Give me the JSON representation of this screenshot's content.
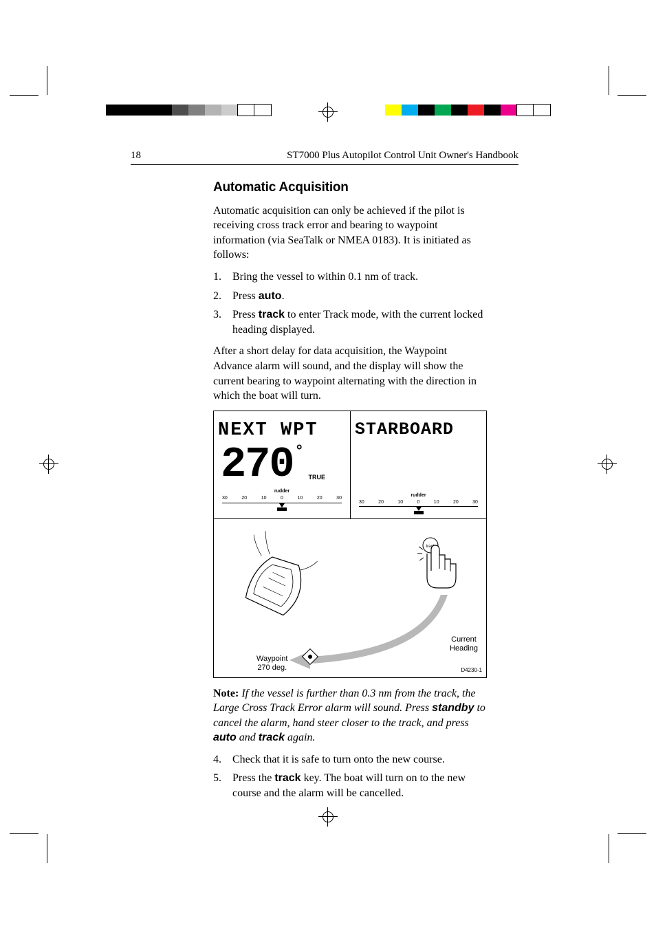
{
  "colorbars": {
    "left": [
      "#000000",
      "#000000",
      "#000000",
      "#000000",
      "#4d4d4d",
      "#808080",
      "#b3b3b3",
      "#cccccc",
      "#ffffff",
      "#ffffff"
    ],
    "right": [
      "#ffff00",
      "#00aeef",
      "#000000",
      "#00a651",
      "#000000",
      "#ed1c24",
      "#000000",
      "#ec008c",
      "#ffffff",
      "#ffffff"
    ]
  },
  "header": {
    "page_number": "18",
    "book_title": "ST7000 Plus Autopilot Control Unit Owner's Handbook"
  },
  "section": {
    "title": "Automatic Acquisition",
    "intro": "Automatic acquisition can only be achieved if the pilot is receiving cross track error and bearing to waypoint information (via SeaTalk or NMEA 0183). It is initiated as follows:",
    "steps_a": [
      {
        "n": "1.",
        "text": "Bring the vessel to within 0.1 nm of track."
      },
      {
        "n": "2.",
        "pre": "Press ",
        "bold": "auto",
        "post": "."
      },
      {
        "n": "3.",
        "pre": "Press ",
        "bold": "track",
        "post": " to enter Track mode, with the current locked heading displayed."
      }
    ],
    "after": "After a short delay for data acquisition, the Waypoint Advance alarm will sound, and the display will show the current bearing to waypoint alternating with the direction in which the boat will turn.",
    "note": {
      "label": "Note:",
      "p1": " If the vessel is further than 0.3 nm from the track, the Large Cross Track Error alarm will sound. Press ",
      "b1": "standby",
      "p2": " to cancel the alarm, hand steer closer to the track, and press ",
      "b2": "auto",
      "p3": " and ",
      "b3": "track",
      "p4": " again."
    },
    "steps_b": [
      {
        "n": "4.",
        "text": "Check that it is safe to turn onto the new course."
      },
      {
        "n": "5.",
        "pre": "Press the ",
        "bold": "track",
        "post": " key. The boat will turn on to the new course and the alarm will be cancelled."
      }
    ]
  },
  "figure": {
    "lcd_left_line": "NEXT  WPT",
    "lcd_right_line": "STARBOARD",
    "lcd_big": "270",
    "lcd_deg": "°",
    "lcd_true": "TRUE",
    "rudder_label": "rudder",
    "rudder_ticks": [
      "30",
      "20",
      "10",
      "0",
      "10",
      "20",
      "30"
    ],
    "label_waypoint_1": "Waypoint",
    "label_waypoint_2": "270 deg.",
    "label_current_1": "Current",
    "label_current_2": "Heading",
    "id": "D4230-1",
    "arrow_color": "#b8b8b8"
  }
}
